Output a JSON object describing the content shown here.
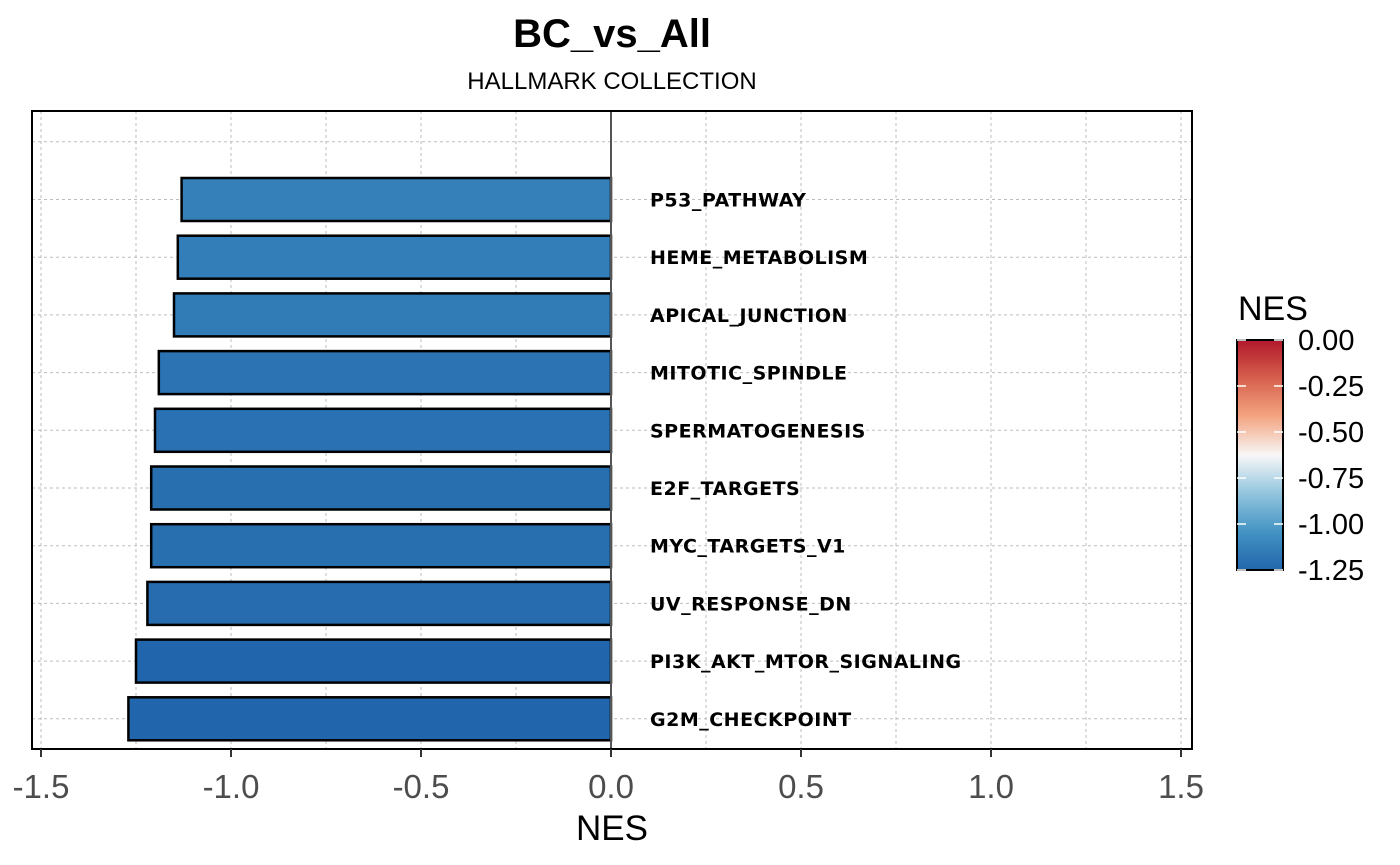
{
  "chart_data": {
    "type": "bar",
    "orientation": "horizontal",
    "title": "BC_vs_All",
    "subtitle": "HALLMARK COLLECTION",
    "xlabel": "NES",
    "ylabel": "",
    "xlim": [
      -1.5,
      1.5
    ],
    "x_ticks": [
      -1.5,
      -1.0,
      -0.5,
      0.0,
      0.5,
      1.0,
      1.5
    ],
    "x_tick_labels": [
      "-1.5",
      "-1.0",
      "-0.5",
      "0.0",
      "0.5",
      "1.0",
      "1.5"
    ],
    "grid": true,
    "categories": [
      "P53_PATHWAY",
      "HEME_METABOLISM",
      "APICAL_JUNCTION",
      "MITOTIC_SPINDLE",
      "SPERMATOGENESIS",
      "E2F_TARGETS",
      "MYC_TARGETS_V1",
      "UV_RESPONSE_DN",
      "PI3K_AKT_MTOR_SIGNALING",
      "G2M_CHECKPOINT"
    ],
    "values": [
      -1.13,
      -1.14,
      -1.15,
      -1.19,
      -1.2,
      -1.21,
      -1.21,
      -1.22,
      -1.25,
      -1.27
    ],
    "legend": {
      "title": "NES",
      "placement": "right",
      "range": [
        -1.25,
        0.0
      ],
      "ticks": [
        0.0,
        -0.25,
        -0.5,
        -0.75,
        -1.0,
        -1.25
      ],
      "tick_labels": [
        "0.00",
        "-0.25",
        "-0.50",
        "-0.75",
        "-1.00",
        "-1.25"
      ],
      "colors": [
        "#2166ac",
        "#4393c3",
        "#92c5de",
        "#f7f7f7",
        "#f4a582",
        "#d6604d",
        "#b2182b"
      ]
    }
  }
}
